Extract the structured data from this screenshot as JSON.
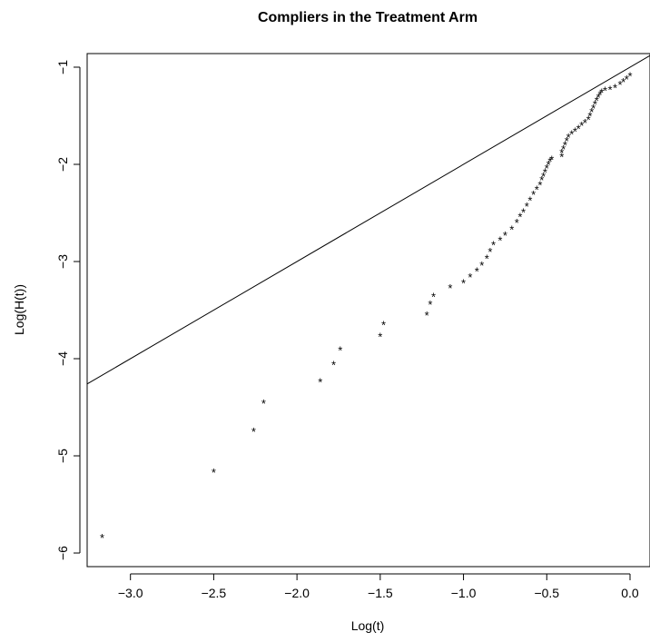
{
  "chart_data": {
    "type": "scatter",
    "title": "Compliers in the Treatment Arm",
    "xlabel": "Log(t)",
    "ylabel": "Log(H(t))",
    "xlim": [
      -3.26,
      0.12
    ],
    "ylim": [
      -6.14,
      -0.86
    ],
    "x_ticks": [
      -3.0,
      -2.5,
      -2.0,
      -1.5,
      -1.0,
      -0.5,
      0.0
    ],
    "x_tick_labels": [
      "−3.0",
      "−2.5",
      "−2.0",
      "−1.5",
      "−1.0",
      "−0.5",
      "0.0"
    ],
    "y_ticks": [
      -6,
      -5,
      -4,
      -3,
      -2,
      -1
    ],
    "y_tick_labels": [
      "−6",
      "−5",
      "−4",
      "−3",
      "−2",
      "−1"
    ],
    "marker": "*",
    "reference_line": {
      "slope": 1.0,
      "intercept": -1.0
    },
    "points": [
      [
        -3.17,
        -5.83
      ],
      [
        -2.5,
        -5.16
      ],
      [
        -2.26,
        -4.74
      ],
      [
        -2.2,
        -4.45
      ],
      [
        -1.86,
        -4.23
      ],
      [
        -1.78,
        -4.05
      ],
      [
        -1.74,
        -3.9
      ],
      [
        -1.5,
        -3.76
      ],
      [
        -1.48,
        -3.64
      ],
      [
        -1.22,
        -3.54
      ],
      [
        -1.2,
        -3.43
      ],
      [
        -1.18,
        -3.35
      ],
      [
        -1.08,
        -3.26
      ],
      [
        -1.0,
        -3.21
      ],
      [
        -0.96,
        -3.15
      ],
      [
        -0.92,
        -3.09
      ],
      [
        -0.89,
        -3.03
      ],
      [
        -0.86,
        -2.96
      ],
      [
        -0.84,
        -2.89
      ],
      [
        -0.82,
        -2.82
      ],
      [
        -0.78,
        -2.77
      ],
      [
        -0.75,
        -2.72
      ],
      [
        -0.71,
        -2.66
      ],
      [
        -0.68,
        -2.59
      ],
      [
        -0.66,
        -2.53
      ],
      [
        -0.64,
        -2.48
      ],
      [
        -0.62,
        -2.42
      ],
      [
        -0.6,
        -2.36
      ],
      [
        -0.58,
        -2.3
      ],
      [
        -0.56,
        -2.25
      ],
      [
        -0.54,
        -2.2
      ],
      [
        -0.53,
        -2.15
      ],
      [
        -0.52,
        -2.11
      ],
      [
        -0.51,
        -2.07
      ],
      [
        -0.5,
        -2.03
      ],
      [
        -0.49,
        -1.99
      ],
      [
        -0.48,
        -1.96
      ],
      [
        -0.47,
        -1.94
      ],
      [
        -0.41,
        -1.91
      ],
      [
        -0.41,
        -1.87
      ],
      [
        -0.4,
        -1.83
      ],
      [
        -0.39,
        -1.79
      ],
      [
        -0.38,
        -1.75
      ],
      [
        -0.37,
        -1.71
      ],
      [
        -0.35,
        -1.68
      ],
      [
        -0.33,
        -1.65
      ],
      [
        -0.31,
        -1.62
      ],
      [
        -0.29,
        -1.59
      ],
      [
        -0.27,
        -1.56
      ],
      [
        -0.25,
        -1.53
      ],
      [
        -0.24,
        -1.49
      ],
      [
        -0.23,
        -1.45
      ],
      [
        -0.22,
        -1.41
      ],
      [
        -0.21,
        -1.37
      ],
      [
        -0.2,
        -1.33
      ],
      [
        -0.19,
        -1.3
      ],
      [
        -0.18,
        -1.27
      ],
      [
        -0.17,
        -1.25
      ],
      [
        -0.15,
        -1.23
      ],
      [
        -0.12,
        -1.22
      ],
      [
        -0.09,
        -1.2
      ],
      [
        -0.06,
        -1.17
      ],
      [
        -0.04,
        -1.14
      ],
      [
        -0.02,
        -1.11
      ],
      [
        0.0,
        -1.08
      ]
    ]
  }
}
